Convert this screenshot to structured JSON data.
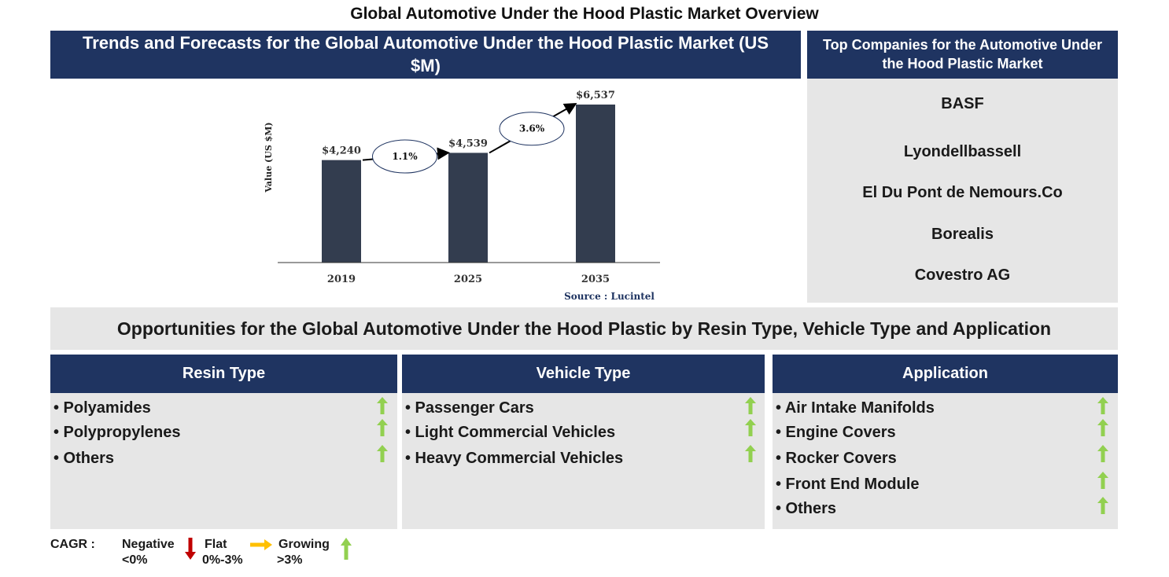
{
  "main_title": "Global Automotive Under the Hood Plastic Market Overview",
  "trends_header": "Trends and Forecasts for the Global Automotive Under the Hood Plastic Market (US $M)",
  "companies": {
    "header": "Top Companies for the Automotive Under the Hood Plastic Market",
    "items": [
      "BASF",
      "Lyondellbassell",
      "El Du Pont de Nemours.Co",
      "Borealis",
      "Covestro AG"
    ]
  },
  "chart_data": {
    "type": "bar",
    "categories": [
      "2019",
      "2025",
      "2035"
    ],
    "values": [
      4240,
      4539,
      6537
    ],
    "value_labels": [
      "$4,240",
      "$4,539",
      "$6,537"
    ],
    "ylabel": "Value (US $M)",
    "source": "Source : Lucintel",
    "cagr": [
      {
        "from": "2019",
        "to": "2025",
        "label": "1.1%"
      },
      {
        "from": "2025",
        "to": "2035",
        "label": "3.6%"
      }
    ],
    "colors": {
      "bar": "#333d4f"
    }
  },
  "opportunities": {
    "title": "Opportunities for the Global Automotive Under the Hood Plastic by Resin Type, Vehicle Type and Application",
    "segments": [
      {
        "header": "Resin Type",
        "items": [
          "• Polyamides",
          "• Polypropylenes",
          "• Others"
        ]
      },
      {
        "header": "Vehicle Type",
        "items": [
          "• Passenger Cars",
          "• Light Commercial Vehicles",
          "• Heavy Commercial Vehicles"
        ]
      },
      {
        "header": "Application",
        "items": [
          "• Air Intake Manifolds",
          "• Engine Covers",
          "• Rocker Covers",
          "• Front End Module",
          "• Others"
        ]
      }
    ]
  },
  "legend": {
    "label": "CAGR :",
    "negative": "Negative",
    "negative_range": "<0%",
    "flat": "Flat",
    "flat_range": "0%-3%",
    "growing": "Growing",
    "growing_range": ">3%"
  },
  "colors": {
    "navy": "#1f3461",
    "panel_gray": "#e6e6e6",
    "up_arrow": "#92d050",
    "down_arrow": "#c00000",
    "flat_arrow": "#ffc000"
  }
}
